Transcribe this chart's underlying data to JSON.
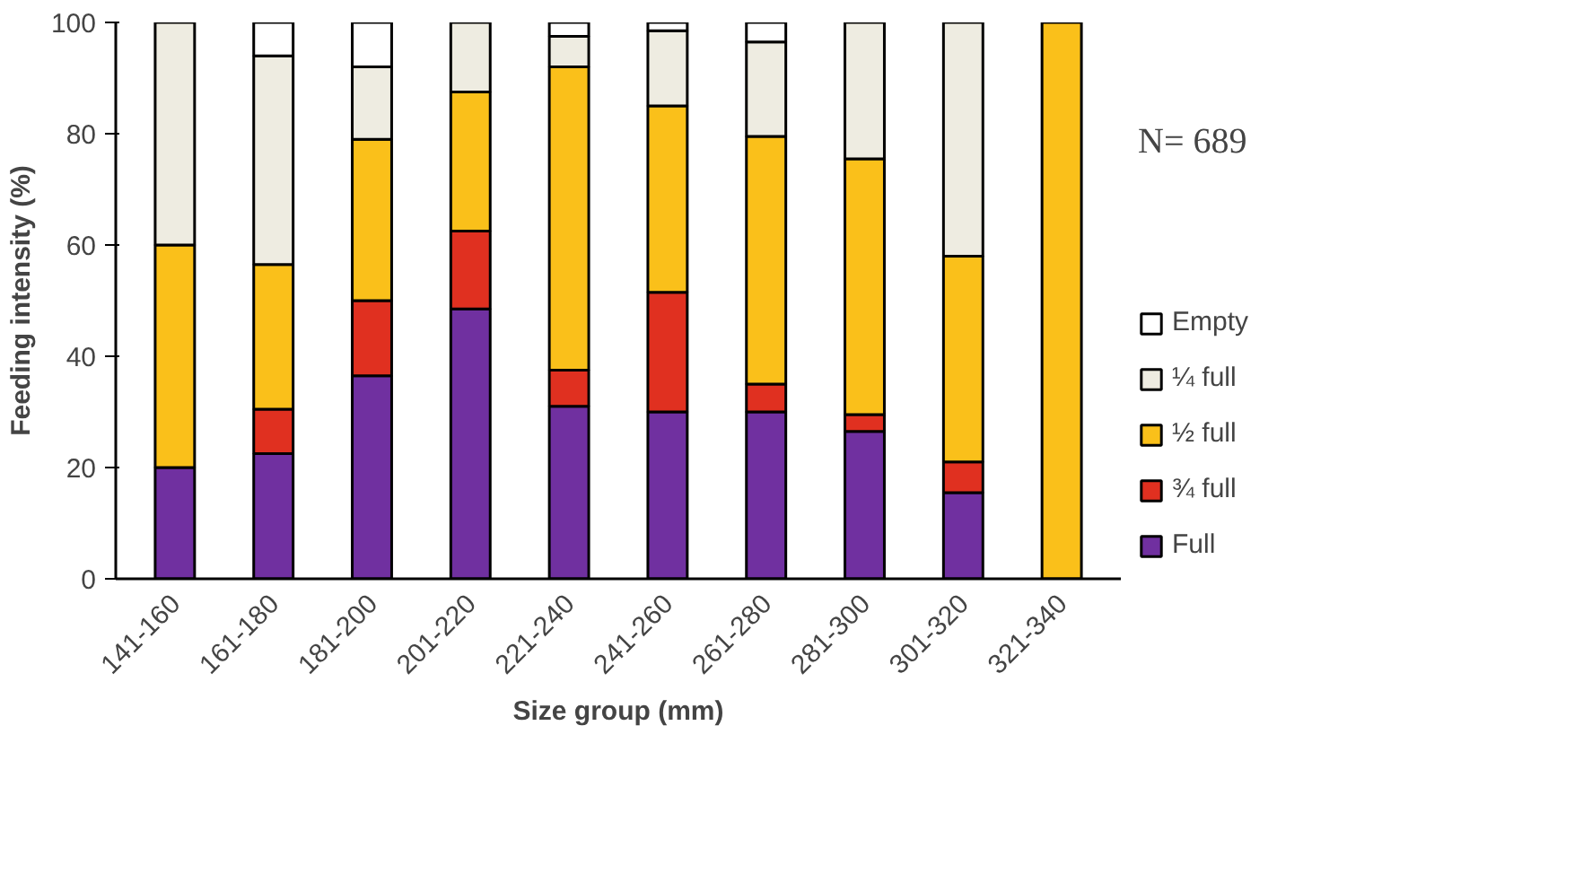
{
  "chart_data": {
    "type": "bar",
    "stacked": true,
    "xlabel": "Size group (mm)",
    "ylabel": "Feeding intensity (%)",
    "categories": [
      "141-160",
      "161-180",
      "181-200",
      "201-220",
      "221-240",
      "241-260",
      "261-280",
      "281-300",
      "301-320",
      "321-340"
    ],
    "series": [
      {
        "name": "Full",
        "color": "#7030a0",
        "values": [
          20,
          22.5,
          36.5,
          48.5,
          31,
          30,
          30,
          26.5,
          15.5,
          0
        ]
      },
      {
        "name": "¾ full",
        "color": "#e03020",
        "values": [
          0,
          8,
          13.5,
          14,
          6.5,
          21.5,
          5,
          3,
          5.5,
          0
        ]
      },
      {
        "name": "½ full",
        "color": "#fac01a",
        "values": [
          40,
          26,
          29,
          25,
          54.5,
          33.5,
          44.5,
          46,
          37,
          100
        ]
      },
      {
        "name": "¼ full",
        "color": "#eeece1",
        "values": [
          40,
          37.5,
          13,
          12.5,
          5.5,
          13.5,
          17,
          24.5,
          42,
          0
        ]
      },
      {
        "name": "Empty",
        "color": "#ffffff",
        "values": [
          0,
          6,
          8,
          0,
          2.5,
          1.5,
          3.5,
          0,
          0,
          0
        ]
      }
    ],
    "ylim": [
      0,
      100
    ],
    "yticks": [
      0,
      20,
      40,
      60,
      80,
      100
    ],
    "grid": false,
    "legend": "right",
    "annotations": [
      "N= 689"
    ]
  }
}
